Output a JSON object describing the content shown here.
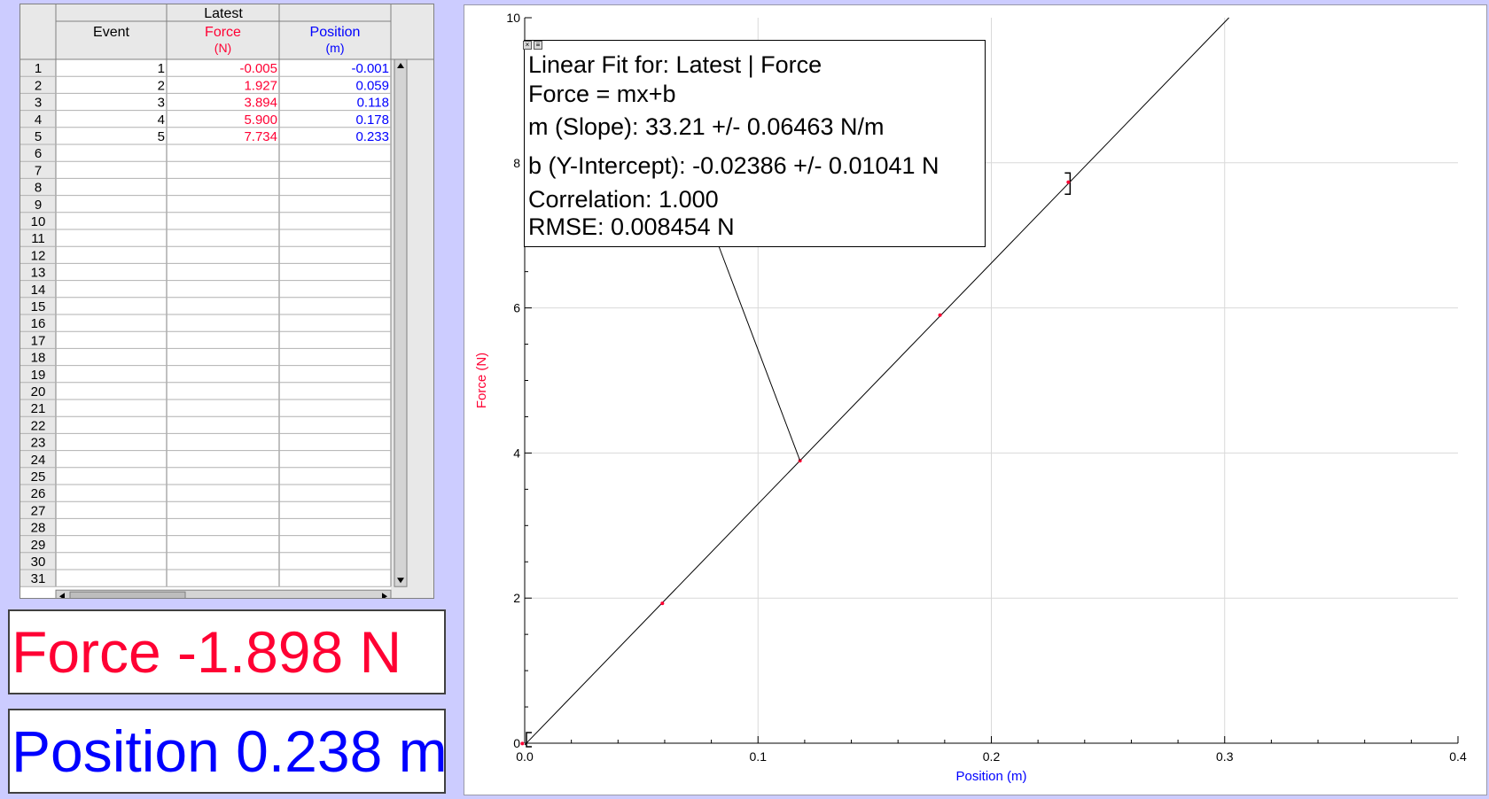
{
  "table": {
    "run_header": "Latest",
    "columns": [
      {
        "name": "Event",
        "unit": "",
        "color": "#000000"
      },
      {
        "name": "Force",
        "unit": "(N)",
        "color": "#ff0033"
      },
      {
        "name": "Position",
        "unit": "(m)",
        "color": "#0000ff"
      }
    ],
    "row_numbers": [
      "1",
      "2",
      "3",
      "4",
      "5",
      "6",
      "7",
      "8",
      "9",
      "10",
      "11",
      "12",
      "13",
      "14",
      "15",
      "16",
      "17",
      "18",
      "19",
      "20",
      "21",
      "22",
      "23",
      "24",
      "25",
      "26",
      "27",
      "28",
      "29",
      "30",
      "31"
    ],
    "rows": [
      [
        "1",
        "-0.005",
        "-0.001"
      ],
      [
        "2",
        "1.927",
        "0.059"
      ],
      [
        "3",
        "3.894",
        "0.118"
      ],
      [
        "4",
        "5.900",
        "0.178"
      ],
      [
        "5",
        "7.734",
        "0.233"
      ]
    ]
  },
  "meters": {
    "force": "Force -1.898 N",
    "position": "Position 0.238 m"
  },
  "fit": {
    "title": "Linear Fit for: Latest | Force",
    "equation": "Force = mx+b",
    "slope": "m (Slope): 33.21 +/- 0.06463 N/m",
    "intercept": "b (Y-Intercept): -0.02386 +/- 0.01041 N",
    "correlation": "Correlation: 1.000",
    "rmse": "RMSE: 0.008454 N"
  },
  "colors": {
    "force": "#ff0033",
    "position": "#0000ff",
    "background": "#ccccff"
  },
  "chart_data": {
    "type": "scatter",
    "xlabel": "Position (m)",
    "ylabel": "Force (N)",
    "xlim": [
      0,
      0.4
    ],
    "ylim": [
      0,
      10
    ],
    "x_ticks": [
      "0.0",
      "0.1",
      "0.2",
      "0.3",
      "0.4"
    ],
    "y_ticks": [
      "0",
      "2",
      "4",
      "6",
      "8",
      "10"
    ],
    "grid": true,
    "series": [
      {
        "color": "#ff0033",
        "x": [
          -0.001,
          0.059,
          0.118,
          0.178,
          0.233
        ],
        "y": [
          -0.005,
          1.927,
          3.894,
          5.9,
          7.734
        ]
      }
    ],
    "fit": {
      "slope": 33.21,
      "intercept": -0.02386,
      "x_range": [
        0,
        0.233
      ]
    }
  }
}
